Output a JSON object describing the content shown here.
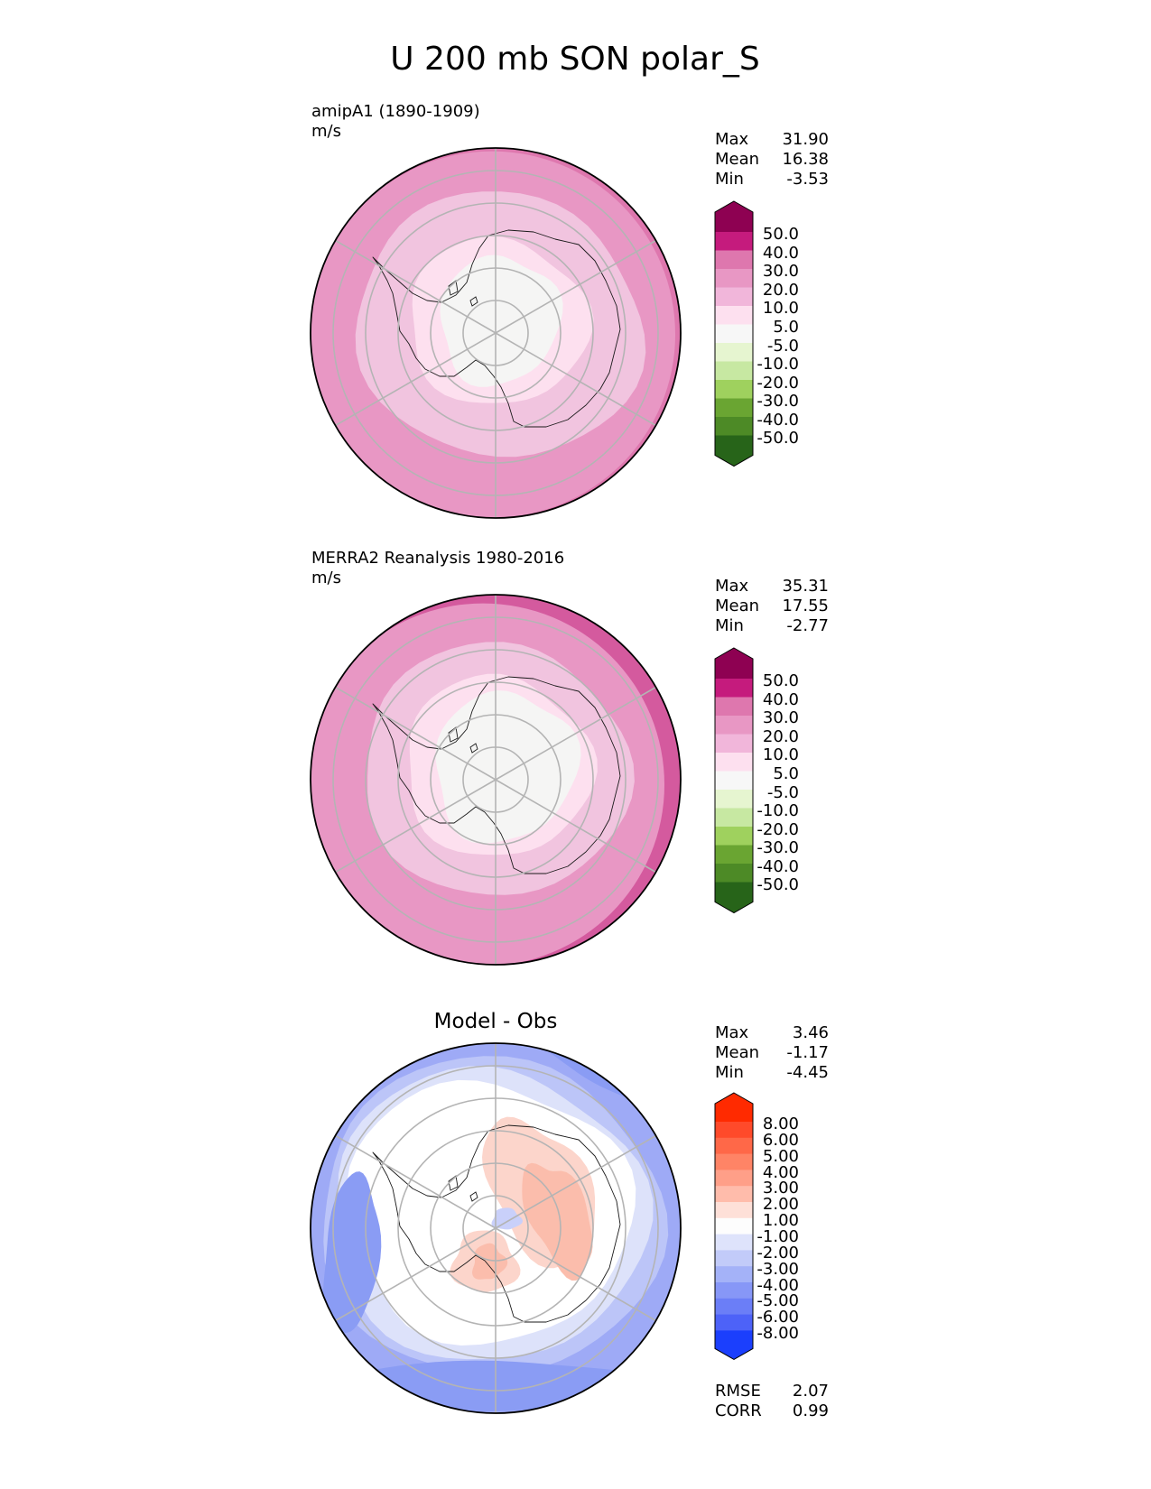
{
  "figure_title": "U 200 mb SON polar_S",
  "chart_data": [
    {
      "type": "contour-map",
      "projection": "south-polar-stereographic",
      "title": "amipA1 (1890-1909)",
      "units": "m/s",
      "stats": [
        {
          "label": "Max",
          "value": "31.90"
        },
        {
          "label": "Mean",
          "value": "16.38"
        },
        {
          "label": "Min",
          "value": "-3.53"
        }
      ],
      "colorbar": {
        "tick_labels": [
          "50.0",
          "40.0",
          "30.0",
          "20.0",
          "10.0",
          "5.0",
          "-5.0",
          "-10.0",
          "-20.0",
          "-30.0",
          "-40.0",
          "-50.0"
        ],
        "colors": [
          "#8e0152",
          "#c51b7d",
          "#de77ae",
          "#e897c4",
          "#f1b6da",
          "#fde0ef",
          "#f7f7f7",
          "#e6f5d0",
          "#c7e8a2",
          "#9fd15e",
          "#6aa532",
          "#4d8a26",
          "#276419"
        ],
        "extend": "both"
      },
      "field_bands": [
        {
          "value": 25,
          "color": "#e897c4"
        },
        {
          "value": 15,
          "color": "#f1c4df"
        },
        {
          "value": 7,
          "color": "#fde0ef"
        },
        {
          "value": 0,
          "color": "#f5f5f4"
        }
      ],
      "edge_band": {
        "value": 35,
        "color": "#de77ae"
      }
    },
    {
      "type": "contour-map",
      "projection": "south-polar-stereographic",
      "title": "MERRA2 Reanalysis 1980-2016",
      "units": "m/s",
      "stats": [
        {
          "label": "Max",
          "value": "35.31"
        },
        {
          "label": "Mean",
          "value": "17.55"
        },
        {
          "label": "Min",
          "value": "-2.77"
        }
      ],
      "colorbar": {
        "tick_labels": [
          "50.0",
          "40.0",
          "30.0",
          "20.0",
          "10.0",
          "5.0",
          "-5.0",
          "-10.0",
          "-20.0",
          "-30.0",
          "-40.0",
          "-50.0"
        ],
        "colors": [
          "#8e0152",
          "#c51b7d",
          "#de77ae",
          "#e897c4",
          "#f1b6da",
          "#fde0ef",
          "#f7f7f7",
          "#e6f5d0",
          "#c7e8a2",
          "#9fd15e",
          "#6aa532",
          "#4d8a26",
          "#276419"
        ],
        "extend": "both"
      },
      "field_bands": [
        {
          "value": 25,
          "color": "#e897c4"
        },
        {
          "value": 15,
          "color": "#f1c4df"
        },
        {
          "value": 7,
          "color": "#fde0ef"
        },
        {
          "value": 0,
          "color": "#f5f5f4"
        }
      ],
      "edge_band": {
        "value": 35,
        "color": "#d45a9e"
      }
    },
    {
      "type": "contour-map",
      "projection": "south-polar-stereographic",
      "title": "Model - Obs",
      "units": "",
      "stats": [
        {
          "label": "Max",
          "value": "3.46"
        },
        {
          "label": "Mean",
          "value": "-1.17"
        },
        {
          "label": "Min",
          "value": "-4.45"
        }
      ],
      "metrics": [
        {
          "label": "RMSE",
          "value": "2.07"
        },
        {
          "label": "CORR",
          "value": "0.99"
        }
      ],
      "colorbar": {
        "tick_labels": [
          "8.00",
          "6.00",
          "5.00",
          "4.00",
          "3.00",
          "2.00",
          "1.00",
          "-1.00",
          "-2.00",
          "-3.00",
          "-4.00",
          "-5.00",
          "-6.00",
          "-8.00"
        ],
        "colors": [
          "#ff2a00",
          "#ff4a2a",
          "#ff6848",
          "#ff8466",
          "#ff9f88",
          "#ffbcab",
          "#fee0d8",
          "#fdfdfd",
          "#dee3fb",
          "#c2cbf9",
          "#a4b2f8",
          "#8797f7",
          "#6b7ef7",
          "#4d62f8",
          "#1b3ffd"
        ],
        "extend": "both"
      },
      "field_bands": [
        {
          "value": -2.5,
          "color": "#9eaaf6"
        },
        {
          "value": -1.5,
          "color": "#bcc5f8"
        },
        {
          "value": -1.2,
          "color": "#dde2fa"
        },
        {
          "value": 0,
          "color": "#ffffff"
        }
      ],
      "anomalies": [
        {
          "value": 1.5,
          "color": "#fcd5cb"
        },
        {
          "value": 2.5,
          "color": "#fbbdac"
        },
        {
          "value": -3.5,
          "color": "#8a9cf4"
        },
        {
          "value": -1.5,
          "color": "#c9d0fa"
        }
      ]
    }
  ]
}
